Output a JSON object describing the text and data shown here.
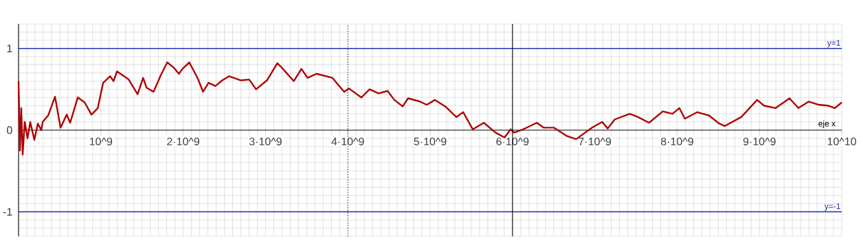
{
  "chart_data": {
    "type": "line",
    "x": [
      0,
      17000000.0,
      33000000.0,
      50000000.0,
      75000000.0,
      109000000.0,
      142000000.0,
      192000000.0,
      234000000.0,
      276000000.0,
      293000000.0,
      360000000.0,
      443000000.0,
      510000000.0,
      585000000.0,
      627000000.0,
      719000000.0,
      803000000.0,
      886000000.0,
      962000000.0,
      1028000000.0,
      1112000000.0,
      1154000000.0,
      1196000000.0,
      1338000000.0,
      1446000000.0,
      1513000000.0,
      1555000000.0,
      1639000000.0,
      1697000000.0,
      1722000000.0,
      1806000000.0,
      1890000000.0,
      1948000000.0,
      1990000000.0,
      2074000000.0,
      2174000000.0,
      2241000000.0,
      2308000000.0,
      2391000000.0,
      2475000000.0,
      2559000000.0,
      2701000000.0,
      2801000000.0,
      2885000000.0,
      3018000000.0,
      3144000000.0,
      3202000000.0,
      3344000000.0,
      3436000000.0,
      3512000000.0,
      3620000000.0,
      3813000000.0,
      3955000000.0,
      4013000000.0,
      4164000000.0,
      4264000000.0,
      4373000000.0,
      4482000000.0,
      4565000000.0,
      4666000000.0,
      4732000000.0,
      4875000000.0,
      4958000000.0,
      5059000000.0,
      5184000000.0,
      5318000000.0,
      5401000000.0,
      5518000000.0,
      5652000000.0,
      5794000000.0,
      5903000000.0,
      5978000000.0,
      6020000000.0,
      6129000000.0,
      6296000000.0,
      6380000000.0,
      6505000000.0,
      6656000000.0,
      6773000000.0,
      6965000000.0,
      7090000000.0,
      7157000000.0,
      7241000000.0,
      7425000000.0,
      7525000000.0,
      7659000000.0,
      7826000000.0,
      7943000000.0,
      8027000000.0,
      8094000000.0,
      8244000000.0,
      8386000000.0,
      8512000000.0,
      8579000000.0,
      8779000000.0,
      8972000000.0,
      9055000000.0,
      9197000000.0,
      9365000000.0,
      9473000000.0,
      9599000000.0,
      9724000000.0,
      9833000000.0,
      9916000000.0,
      10000000000.0
    ],
    "series": [
      {
        "color": "#b00000",
        "values": [
          0.6,
          -0.25,
          0.27,
          -0.3,
          0.1,
          -0.1,
          0.1,
          -0.12,
          0.08,
          0.0,
          0.1,
          0.18,
          0.41,
          0.03,
          0.19,
          0.09,
          0.4,
          0.34,
          0.19,
          0.27,
          0.58,
          0.66,
          0.6,
          0.72,
          0.62,
          0.44,
          0.64,
          0.52,
          0.47,
          0.6,
          0.66,
          0.83,
          0.76,
          0.69,
          0.75,
          0.83,
          0.64,
          0.47,
          0.58,
          0.54,
          0.61,
          0.66,
          0.61,
          0.62,
          0.5,
          0.61,
          0.82,
          0.76,
          0.6,
          0.75,
          0.64,
          0.69,
          0.64,
          0.47,
          0.51,
          0.4,
          0.5,
          0.45,
          0.48,
          0.37,
          0.29,
          0.39,
          0.35,
          0.31,
          0.37,
          0.29,
          0.16,
          0.22,
          0.01,
          0.09,
          -0.03,
          -0.09,
          0.01,
          -0.03,
          0.01,
          0.09,
          0.03,
          0.03,
          -0.07,
          -0.11,
          0.03,
          0.1,
          0.02,
          0.13,
          0.2,
          0.16,
          0.09,
          0.23,
          0.2,
          0.27,
          0.14,
          0.22,
          0.18,
          0.08,
          0.05,
          0.16,
          0.37,
          0.3,
          0.27,
          0.39,
          0.27,
          0.35,
          0.31,
          0.3,
          0.27,
          0.34
        ]
      }
    ],
    "xlabel": "eje x",
    "xlim": [
      0,
      10000000000.0
    ],
    "ylim": [
      -1.3,
      1.3
    ],
    "xticks": [
      {
        "value": 1000000000.0,
        "label": "10^9"
      },
      {
        "value": 2000000000.0,
        "label": "2·10^9"
      },
      {
        "value": 3000000000.0,
        "label": "3·10^9"
      },
      {
        "value": 4000000000.0,
        "label": "4·10^9"
      },
      {
        "value": 5000000000.0,
        "label": "5·10^9"
      },
      {
        "value": 6000000000.0,
        "label": "6·10^9"
      },
      {
        "value": 7000000000.0,
        "label": "7·10^9"
      },
      {
        "value": 8000000000.0,
        "label": "8·10^9"
      },
      {
        "value": 9000000000.0,
        "label": "9·10^9"
      },
      {
        "value": 10000000000.0,
        "label": "10^10"
      }
    ],
    "yticks": [
      -1,
      0,
      1
    ],
    "ref_lines": [
      {
        "axis": "y",
        "value": 1,
        "label": "y=1",
        "color": "#1f2fb0"
      },
      {
        "axis": "y",
        "value": -1,
        "label": "y=-1",
        "color": "#1f2fb0"
      },
      {
        "axis": "x",
        "value": 4000000000.0,
        "color": "#000000",
        "line_style": "dotted"
      },
      {
        "axis": "x",
        "value": 6000000000.0,
        "color": "#000000",
        "line_style": "solid"
      }
    ],
    "grid": true,
    "line_style": "solid"
  }
}
